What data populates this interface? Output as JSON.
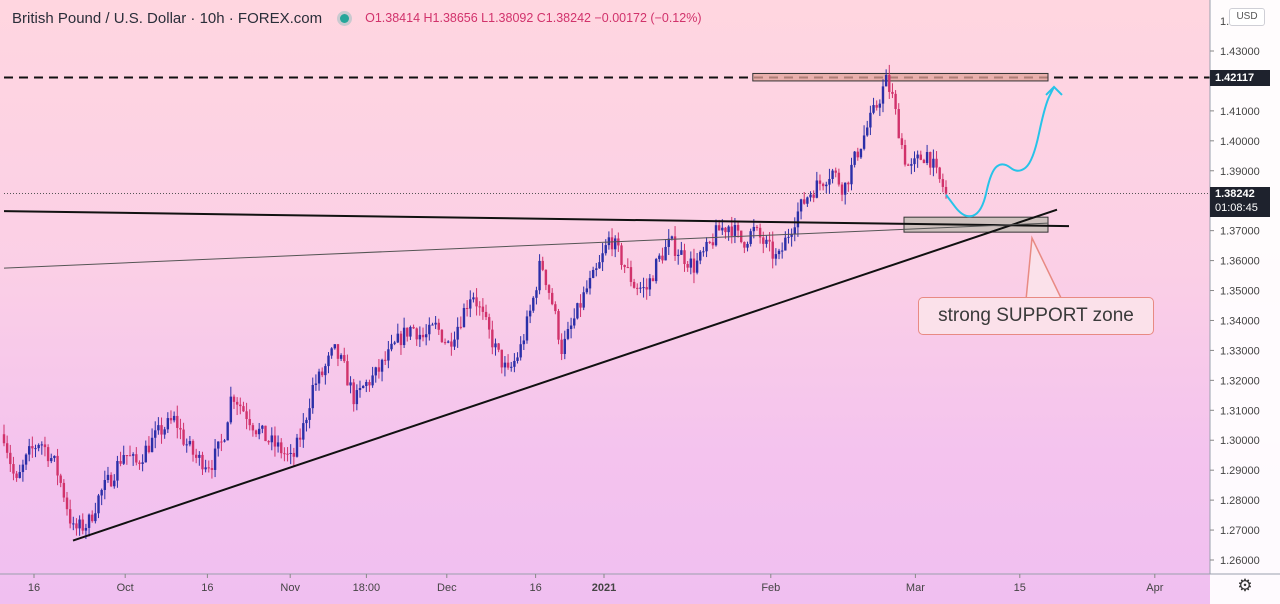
{
  "header": {
    "symbol_title": "British Pound / U.S. Dollar · 10h · FOREX.com",
    "ohlc": "O1.38414 H1.38656 L1.38092 C1.38242 −0.00172 (−0.12%)"
  },
  "price_axis": {
    "currency": "USD",
    "current_price": "1.38242",
    "countdown": "01:08:45",
    "level_label": "1.42117",
    "settings_icon": "gear-icon"
  },
  "annotations": {
    "support_label": "strong SUPPORT zone"
  },
  "colors": {
    "up_candle": "#2b2fa8",
    "down_candle": "#d1326b",
    "projection": "#27c3e8",
    "trendline": "#111111"
  },
  "chart_data": {
    "type": "candlestick",
    "title": "British Pound / U.S. Dollar · 10h · FOREX.com",
    "ylim": [
      1.255,
      1.437
    ],
    "y_ticks": [
      1.26,
      1.27,
      1.28,
      1.29,
      1.3,
      1.31,
      1.32,
      1.33,
      1.34,
      1.35,
      1.36,
      1.37,
      1.38,
      1.39,
      1.4,
      1.41,
      1.42,
      1.43
    ],
    "y_tick_labels": [
      "1.26000",
      "1.27000",
      "1.28000",
      "1.29000",
      "1.30000",
      "1.31000",
      "1.32000",
      "1.33000",
      "1.34000",
      "1.35000",
      "1.36000",
      "1.37000",
      "1.38000",
      "1.39000",
      "1.40000",
      "1.41000",
      "1.42000",
      "1.43000"
    ],
    "top_partial_label": "1.",
    "x_ticks": [
      {
        "label": "16",
        "t": 0.05
      },
      {
        "label": "Oct",
        "t": 0.202
      },
      {
        "label": "16",
        "t": 0.339
      },
      {
        "label": "Nov",
        "t": 0.477
      },
      {
        "label": "18:00",
        "t": 0.604
      },
      {
        "label": "Dec",
        "t": 0.738
      },
      {
        "label": "16",
        "t": 0.886
      },
      {
        "label": "2021",
        "t": 1.0
      },
      {
        "label": "Feb",
        "t": 1.278
      },
      {
        "label": "Mar",
        "t": 1.519
      },
      {
        "label": "15",
        "t": 1.693
      },
      {
        "label": "Apr",
        "t": 1.918
      }
    ],
    "price_path": [
      [
        0.0,
        1.302
      ],
      [
        0.02,
        1.285
      ],
      [
        0.04,
        1.295
      ],
      [
        0.06,
        1.3
      ],
      [
        0.085,
        1.292
      ],
      [
        0.1,
        1.282
      ],
      [
        0.115,
        1.27
      ],
      [
        0.14,
        1.272
      ],
      [
        0.16,
        1.282
      ],
      [
        0.18,
        1.288
      ],
      [
        0.2,
        1.296
      ],
      [
        0.22,
        1.292
      ],
      [
        0.24,
        1.298
      ],
      [
        0.26,
        1.303
      ],
      [
        0.285,
        1.307
      ],
      [
        0.3,
        1.3
      ],
      [
        0.32,
        1.294
      ],
      [
        0.345,
        1.292
      ],
      [
        0.365,
        1.3
      ],
      [
        0.38,
        1.316
      ],
      [
        0.4,
        1.31
      ],
      [
        0.42,
        1.304
      ],
      [
        0.44,
        1.3
      ],
      [
        0.46,
        1.297
      ],
      [
        0.48,
        1.293
      ],
      [
        0.5,
        1.305
      ],
      [
        0.515,
        1.318
      ],
      [
        0.53,
        1.322
      ],
      [
        0.55,
        1.33
      ],
      [
        0.565,
        1.325
      ],
      [
        0.585,
        1.313
      ],
      [
        0.6,
        1.318
      ],
      [
        0.62,
        1.322
      ],
      [
        0.64,
        1.328
      ],
      [
        0.66,
        1.334
      ],
      [
        0.68,
        1.338
      ],
      [
        0.7,
        1.334
      ],
      [
        0.72,
        1.338
      ],
      [
        0.74,
        1.332
      ],
      [
        0.76,
        1.34
      ],
      [
        0.78,
        1.35
      ],
      [
        0.8,
        1.34
      ],
      [
        0.82,
        1.33
      ],
      [
        0.84,
        1.322
      ],
      [
        0.86,
        1.33
      ],
      [
        0.88,
        1.345
      ],
      [
        0.895,
        1.36
      ],
      [
        0.915,
        1.345
      ],
      [
        0.93,
        1.33
      ],
      [
        0.95,
        1.34
      ],
      [
        0.97,
        1.35
      ],
      [
        0.99,
        1.357
      ],
      [
        1.01,
        1.368
      ],
      [
        1.03,
        1.36
      ],
      [
        1.05,
        1.352
      ],
      [
        1.07,
        1.35
      ],
      [
        1.09,
        1.36
      ],
      [
        1.11,
        1.366
      ],
      [
        1.13,
        1.362
      ],
      [
        1.15,
        1.358
      ],
      [
        1.17,
        1.363
      ],
      [
        1.19,
        1.37
      ],
      [
        1.21,
        1.372
      ],
      [
        1.23,
        1.366
      ],
      [
        1.25,
        1.37
      ],
      [
        1.27,
        1.365
      ],
      [
        1.29,
        1.36
      ],
      [
        1.305,
        1.368
      ],
      [
        1.32,
        1.375
      ],
      [
        1.34,
        1.382
      ],
      [
        1.36,
        1.386
      ],
      [
        1.38,
        1.39
      ],
      [
        1.4,
        1.384
      ],
      [
        1.42,
        1.395
      ],
      [
        1.44,
        1.405
      ],
      [
        1.455,
        1.412
      ],
      [
        1.47,
        1.42
      ],
      [
        1.48,
        1.415
      ],
      [
        1.49,
        1.405
      ],
      [
        1.5,
        1.395
      ],
      [
        1.51,
        1.39
      ],
      [
        1.525,
        1.394
      ],
      [
        1.54,
        1.396
      ],
      [
        1.555,
        1.388
      ],
      [
        1.57,
        1.383
      ]
    ],
    "projection_path": [
      [
        1.57,
        1.382
      ],
      [
        1.6,
        1.374
      ],
      [
        1.63,
        1.376
      ],
      [
        1.645,
        1.39
      ],
      [
        1.665,
        1.393
      ],
      [
        1.69,
        1.389
      ],
      [
        1.715,
        1.393
      ],
      [
        1.735,
        1.412
      ],
      [
        1.75,
        1.418
      ]
    ],
    "resistance_level": 1.42117,
    "resistance_zone": {
      "t_start": 1.248,
      "t_end": 1.74,
      "low": 1.42,
      "high": 1.4225
    },
    "support_zone": {
      "t_start": 1.5,
      "t_end": 1.74,
      "low": 1.3695,
      "high": 1.3745
    },
    "trendlines": [
      {
        "t1": 0.115,
        "p1": 1.2665,
        "t2": 1.755,
        "p2": 1.377,
        "width": 2
      },
      {
        "t1": 0.0,
        "p1": 1.3765,
        "t2": 1.775,
        "p2": 1.3715,
        "width": 2
      },
      {
        "t1": 0.0,
        "p1": 1.3575,
        "t2": 1.74,
        "p2": 1.3725,
        "width": 1
      }
    ]
  }
}
